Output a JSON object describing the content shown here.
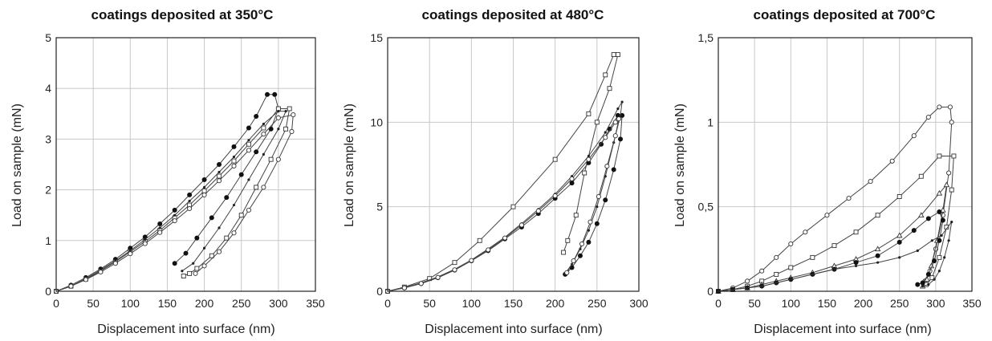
{
  "chart_data": [
    {
      "type": "line",
      "title": "coatings deposited at 350°C",
      "xlabel": "Displacement into surface (nm)",
      "ylabel": "Load on sample (mN)",
      "xlim": [
        0,
        350
      ],
      "ylim": [
        0,
        5
      ],
      "xticks": [
        "0",
        "50",
        "100",
        "150",
        "200",
        "250",
        "300",
        "350"
      ],
      "yticks": [
        "0",
        "1",
        "2",
        "3",
        "4",
        "5"
      ],
      "grid": true,
      "series": [
        {
          "marker": "filled-circle",
          "x": [
            0,
            20,
            40,
            60,
            80,
            100,
            120,
            140,
            160,
            180,
            200,
            220,
            240,
            260,
            270,
            285,
            295,
            300,
            290,
            270,
            250,
            230,
            210,
            190,
            175,
            160
          ],
          "y": [
            0,
            0.12,
            0.27,
            0.44,
            0.63,
            0.85,
            1.07,
            1.33,
            1.6,
            1.9,
            2.2,
            2.5,
            2.85,
            3.22,
            3.45,
            3.88,
            3.88,
            3.6,
            3.2,
            2.75,
            2.3,
            1.85,
            1.45,
            1.05,
            0.75,
            0.55
          ]
        },
        {
          "marker": "open-square",
          "x": [
            0,
            20,
            40,
            60,
            80,
            100,
            120,
            140,
            160,
            180,
            200,
            220,
            240,
            260,
            280,
            300,
            315,
            310,
            290,
            270,
            250,
            230,
            210,
            190,
            180,
            172
          ],
          "y": [
            0,
            0.1,
            0.24,
            0.4,
            0.58,
            0.78,
            0.98,
            1.2,
            1.45,
            1.7,
            1.98,
            2.27,
            2.57,
            2.9,
            3.22,
            3.6,
            3.6,
            3.2,
            2.6,
            2.05,
            1.5,
            1.05,
            0.7,
            0.45,
            0.35,
            0.3
          ]
        },
        {
          "marker": "small-dot",
          "x": [
            0,
            20,
            40,
            60,
            80,
            100,
            120,
            140,
            160,
            180,
            200,
            220,
            240,
            260,
            280,
            300,
            310,
            300,
            280,
            260,
            240,
            220,
            200,
            185,
            170
          ],
          "y": [
            0,
            0.1,
            0.25,
            0.42,
            0.6,
            0.8,
            1.02,
            1.25,
            1.5,
            1.78,
            2.05,
            2.35,
            2.65,
            2.98,
            3.3,
            3.55,
            3.55,
            3.2,
            2.7,
            2.2,
            1.7,
            1.25,
            0.85,
            0.55,
            0.4
          ]
        },
        {
          "marker": "open-circle",
          "x": [
            0,
            20,
            40,
            60,
            80,
            100,
            120,
            140,
            160,
            180,
            200,
            220,
            240,
            260,
            280,
            300,
            320,
            318,
            300,
            280,
            260,
            240,
            220,
            200,
            188
          ],
          "y": [
            0,
            0.1,
            0.23,
            0.38,
            0.55,
            0.74,
            0.94,
            1.16,
            1.39,
            1.63,
            1.9,
            2.18,
            2.47,
            2.78,
            3.1,
            3.42,
            3.48,
            3.15,
            2.6,
            2.05,
            1.6,
            1.15,
            0.78,
            0.5,
            0.35
          ]
        }
      ]
    },
    {
      "type": "line",
      "title": "coatings deposited at 480°C",
      "xlabel": "Displacement into surface (nm)",
      "ylabel": "Load on sample (mN)",
      "xlim": [
        0,
        300
      ],
      "ylim": [
        0,
        15
      ],
      "xticks": [
        "0",
        "50",
        "100",
        "150",
        "200",
        "250",
        "300"
      ],
      "yticks": [
        "0",
        "5",
        "10",
        "15"
      ],
      "grid": true,
      "series": [
        {
          "marker": "open-square",
          "x": [
            0,
            20,
            50,
            80,
            110,
            150,
            200,
            240,
            260,
            270,
            275,
            265,
            250,
            235,
            225,
            215,
            210
          ],
          "y": [
            0,
            0.25,
            0.75,
            1.7,
            3.0,
            5.0,
            7.8,
            10.5,
            12.8,
            14.0,
            14.0,
            12.0,
            10.0,
            7.0,
            4.5,
            3.0,
            2.3
          ]
        },
        {
          "marker": "filled-circle",
          "x": [
            0,
            20,
            40,
            60,
            80,
            100,
            120,
            140,
            160,
            180,
            200,
            220,
            240,
            255,
            265,
            275,
            280,
            278,
            270,
            260,
            250,
            240,
            230,
            220,
            212
          ],
          "y": [
            0,
            0.2,
            0.45,
            0.8,
            1.25,
            1.8,
            2.4,
            3.1,
            3.8,
            4.6,
            5.5,
            6.4,
            7.6,
            8.7,
            9.6,
            10.4,
            10.4,
            9.0,
            7.2,
            5.4,
            4.0,
            2.9,
            2.1,
            1.4,
            1.0
          ]
        },
        {
          "marker": "small-dot",
          "x": [
            0,
            20,
            40,
            60,
            80,
            100,
            120,
            140,
            160,
            180,
            200,
            220,
            240,
            260,
            275,
            280,
            278,
            270,
            260,
            250,
            240,
            230,
            220,
            212
          ],
          "y": [
            0,
            0.22,
            0.5,
            0.85,
            1.3,
            1.85,
            2.5,
            3.2,
            4.0,
            4.85,
            5.75,
            6.8,
            8.0,
            9.4,
            10.8,
            11.2,
            10.4,
            8.8,
            6.8,
            5.0,
            3.6,
            2.5,
            1.6,
            1.05
          ]
        },
        {
          "marker": "open-circle",
          "x": [
            0,
            20,
            40,
            60,
            80,
            100,
            120,
            140,
            160,
            180,
            200,
            220,
            240,
            260,
            272,
            276,
            272,
            262,
            252,
            242,
            232,
            222,
            214
          ],
          "y": [
            0,
            0.2,
            0.46,
            0.82,
            1.27,
            1.82,
            2.45,
            3.15,
            3.92,
            4.75,
            5.65,
            6.65,
            7.8,
            9.1,
            10.0,
            10.2,
            9.2,
            7.4,
            5.6,
            4.1,
            2.8,
            1.8,
            1.1
          ]
        }
      ]
    },
    {
      "type": "line",
      "title": "coatings deposited at 700°C",
      "xlabel": "Displacement into surface (nm)",
      "ylabel": "Load on sample (mN)",
      "xlim": [
        0,
        350
      ],
      "ylim": [
        0,
        1.5
      ],
      "xticks": [
        "0",
        "50",
        "100",
        "150",
        "200",
        "250",
        "300",
        "350"
      ],
      "yticks": [
        "0",
        "0,5",
        "1",
        "1,5"
      ],
      "grid": true,
      "series": [
        {
          "marker": "open-circle",
          "x": [
            0,
            20,
            40,
            60,
            80,
            100,
            120,
            150,
            180,
            210,
            240,
            270,
            290,
            305,
            320,
            322,
            318,
            310,
            300,
            292,
            285
          ],
          "y": [
            0,
            0.02,
            0.06,
            0.12,
            0.2,
            0.28,
            0.35,
            0.45,
            0.55,
            0.65,
            0.77,
            0.92,
            1.03,
            1.09,
            1.09,
            1.0,
            0.7,
            0.45,
            0.25,
            0.12,
            0.06
          ]
        },
        {
          "marker": "open-square",
          "x": [
            0,
            20,
            40,
            60,
            80,
            100,
            130,
            160,
            190,
            220,
            250,
            280,
            305,
            325,
            322,
            315,
            305,
            295,
            287
          ],
          "y": [
            0,
            0.01,
            0.03,
            0.06,
            0.1,
            0.14,
            0.2,
            0.27,
            0.35,
            0.45,
            0.56,
            0.68,
            0.8,
            0.8,
            0.6,
            0.38,
            0.2,
            0.08,
            0.04
          ]
        },
        {
          "marker": "open-triangle",
          "x": [
            0,
            20,
            40,
            60,
            80,
            100,
            130,
            160,
            190,
            220,
            250,
            280,
            305,
            315,
            310,
            302,
            294,
            288,
            282
          ],
          "y": [
            0,
            0.01,
            0.02,
            0.04,
            0.06,
            0.08,
            0.11,
            0.15,
            0.19,
            0.25,
            0.33,
            0.45,
            0.58,
            0.63,
            0.48,
            0.3,
            0.15,
            0.07,
            0.03
          ]
        },
        {
          "marker": "filled-circle",
          "x": [
            0,
            20,
            40,
            60,
            80,
            100,
            130,
            160,
            190,
            220,
            250,
            270,
            290,
            305,
            310,
            305,
            298,
            290,
            282,
            275
          ],
          "y": [
            0,
            0.01,
            0.02,
            0.03,
            0.05,
            0.07,
            0.1,
            0.13,
            0.17,
            0.21,
            0.29,
            0.36,
            0.43,
            0.47,
            0.42,
            0.3,
            0.18,
            0.1,
            0.05,
            0.04
          ]
        },
        {
          "marker": "small-dot",
          "x": [
            0,
            20,
            40,
            60,
            80,
            100,
            130,
            160,
            190,
            220,
            250,
            275,
            295,
            308,
            322,
            318,
            312,
            305,
            298,
            290,
            282
          ],
          "y": [
            0,
            0.01,
            0.02,
            0.03,
            0.05,
            0.07,
            0.1,
            0.13,
            0.15,
            0.17,
            0.2,
            0.24,
            0.3,
            0.33,
            0.41,
            0.3,
            0.2,
            0.12,
            0.07,
            0.04,
            0.03
          ]
        }
      ]
    }
  ]
}
